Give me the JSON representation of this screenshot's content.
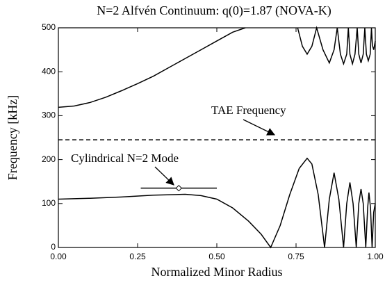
{
  "chart_data": {
    "type": "line",
    "title": "N=2 Alfvén Continuum: q(0)=1.87 (NOVA-K)",
    "xlabel": "Normalized Minor Radius",
    "ylabel": "Frequency [kHz]",
    "xlim": [
      0,
      1
    ],
    "ylim": [
      0,
      500
    ],
    "xticks": [
      {
        "value": 0,
        "label": "0.00"
      },
      {
        "value": 0.25,
        "label": "0.25"
      },
      {
        "value": 0.5,
        "label": "0.50"
      },
      {
        "value": 0.75,
        "label": "0.75"
      },
      {
        "value": 1,
        "label": "1.00"
      }
    ],
    "yticks": [
      0,
      100,
      200,
      300,
      400,
      500
    ],
    "annotations": [
      "TAE Frequency",
      "Cylindrical N=2 Mode"
    ],
    "series": [
      {
        "color": "#000000",
        "dashed": false,
        "x": [
          0,
          0.05,
          0.1,
          0.15,
          0.2,
          0.25,
          0.3,
          0.35,
          0.4,
          0.45,
          0.5,
          0.55,
          0.59,
          null,
          0.755,
          0.77,
          0.785,
          0.8,
          0.815,
          0.835,
          0.855,
          0.87,
          0.88,
          0.89,
          0.9,
          0.91,
          0.915,
          0.92,
          0.928,
          0.936,
          0.943,
          0.948,
          0.955,
          0.962,
          0.967,
          0.972,
          0.978,
          0.984,
          0.988,
          0.991,
          0.995,
          1.0
        ],
        "values": [
          319,
          322,
          330,
          342,
          357,
          373,
          390,
          410,
          430,
          450,
          470,
          490,
          500,
          null,
          500,
          458,
          440,
          458,
          500,
          450,
          420,
          450,
          500,
          440,
          418,
          440,
          500,
          440,
          418,
          440,
          500,
          440,
          420,
          440,
          500,
          440,
          425,
          440,
          500,
          460,
          450,
          470
        ]
      },
      {
        "color": "#000000",
        "dashed": false,
        "x": [
          0,
          0.1,
          0.2,
          0.3,
          0.4,
          0.45,
          0.5,
          0.55,
          0.6,
          0.64,
          0.67,
          0.7,
          0.73,
          0.76,
          0.785,
          0.8,
          0.82,
          0.84,
          0.855,
          0.87,
          0.885,
          0.9,
          0.91,
          0.92,
          0.93,
          0.94,
          0.948,
          0.955,
          0.962,
          0.97,
          0.976,
          0.98,
          0.985,
          0.99,
          0.995,
          1.0
        ],
        "values": [
          110,
          112,
          115,
          119,
          121,
          118,
          110,
          90,
          60,
          30,
          0,
          50,
          120,
          180,
          203,
          190,
          120,
          0,
          110,
          170,
          110,
          0,
          100,
          148,
          100,
          0,
          100,
          133,
          100,
          0,
          90,
          125,
          90,
          0,
          80,
          100
        ]
      },
      {
        "color": "#000000",
        "dashed": true,
        "x": [
          0,
          1
        ],
        "values": [
          245,
          245
        ]
      },
      {
        "color": "#000000",
        "dashed": false,
        "x": [
          0.26,
          0.5
        ],
        "values": [
          135,
          135
        ]
      },
      {
        "color": "#000000",
        "dashed": false,
        "marker": "diamond",
        "x": [
          0.38
        ],
        "values": [
          135
        ]
      }
    ]
  }
}
